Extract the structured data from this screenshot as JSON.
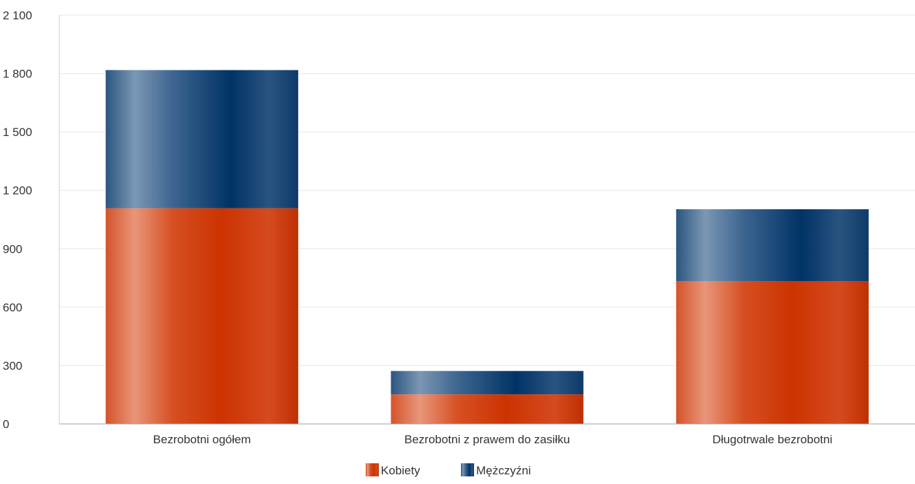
{
  "chart_data": {
    "type": "bar",
    "stacked": true,
    "title": "",
    "xlabel": "",
    "ylabel": "",
    "categories": [
      "Bezrobotni ogółem",
      "Bezrobotni z prawem do zasiłku",
      "Długotrwale bezrobotni"
    ],
    "series": [
      {
        "name": "Kobiety",
        "values": [
          1108,
          152,
          733
        ],
        "color": "#cc3300"
      },
      {
        "name": "Mężczyźni",
        "values": [
          710,
          120,
          370
        ],
        "color": "#003366"
      }
    ],
    "ylim": [
      0,
      2100
    ],
    "yticks": [
      0,
      300,
      600,
      900,
      1200,
      1500,
      1800,
      2100
    ],
    "ytick_labels": [
      "0",
      "300",
      "600",
      "900",
      "1 200",
      "1 500",
      "1 800",
      "2 100"
    ],
    "grid": true,
    "legend_position": "bottom-center"
  }
}
